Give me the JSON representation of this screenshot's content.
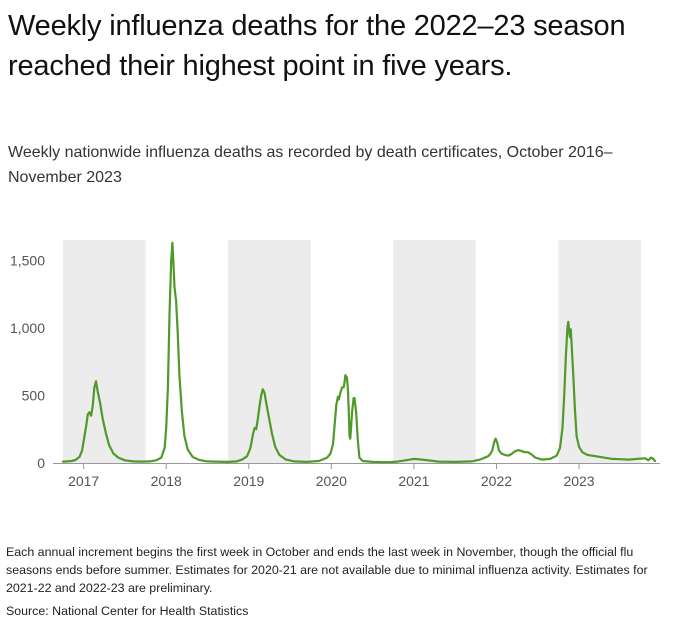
{
  "header": {
    "title": "Weekly influenza deaths for the 2022–23 season reached their highest point in five years.",
    "subtitle": "Weekly nationwide influenza deaths as recorded by death certificates, October 2016–November 2023"
  },
  "footer": {
    "notes": "Each annual increment begins the first week in October and ends the last week in November, though the official flu seasons ends before summer. Estimates for 2020-21 are not available due to minimal influenza activity. Estimates for 2021-22 and 2022-23 are preliminary.",
    "source": "Source: National Center for Health Statistics"
  },
  "colors": {
    "line": "#4f9a2a",
    "band": "#ececec",
    "baseline": "#999999",
    "tick_text": "#555555"
  },
  "chart_data": {
    "type": "line",
    "title": "",
    "xlabel": "",
    "ylabel": "",
    "x_range": [
      2016.75,
      2023.92
    ],
    "ylim": [
      0,
      1650
    ],
    "y_ticks": [
      {
        "value": 0,
        "label": "0"
      },
      {
        "value": 500,
        "label": "500"
      },
      {
        "value": 1000,
        "label": "1,000"
      },
      {
        "value": 1500,
        "label": "1,500"
      }
    ],
    "x_ticks": [
      {
        "value": 2017,
        "label": "2017"
      },
      {
        "value": 2018,
        "label": "2018"
      },
      {
        "value": 2019,
        "label": "2019"
      },
      {
        "value": 2020,
        "label": "2020"
      },
      {
        "value": 2021,
        "label": "2021"
      },
      {
        "value": 2022,
        "label": "2022"
      },
      {
        "value": 2023,
        "label": "2023"
      }
    ],
    "shaded_seasons": [
      [
        2016.75,
        2017.75
      ],
      [
        2018.75,
        2019.75
      ],
      [
        2020.75,
        2021.75
      ],
      [
        2022.75,
        2023.75
      ]
    ],
    "grid": false,
    "legend": "none",
    "series": [
      {
        "values": [
          [
            2016.75,
            10
          ],
          [
            2016.8,
            12
          ],
          [
            2016.85,
            15
          ],
          [
            2016.9,
            22
          ],
          [
            2016.95,
            45
          ],
          [
            2016.98,
            90
          ],
          [
            2017.0,
            160
          ],
          [
            2017.03,
            270
          ],
          [
            2017.05,
            360
          ],
          [
            2017.07,
            375
          ],
          [
            2017.09,
            350
          ],
          [
            2017.11,
            420
          ],
          [
            2017.13,
            560
          ],
          [
            2017.15,
            605
          ],
          [
            2017.17,
            530
          ],
          [
            2017.2,
            440
          ],
          [
            2017.23,
            330
          ],
          [
            2017.27,
            220
          ],
          [
            2017.31,
            130
          ],
          [
            2017.36,
            70
          ],
          [
            2017.42,
            40
          ],
          [
            2017.5,
            20
          ],
          [
            2017.6,
            12
          ],
          [
            2017.7,
            10
          ],
          [
            2017.8,
            12
          ],
          [
            2017.88,
            20
          ],
          [
            2017.94,
            40
          ],
          [
            2017.98,
            110
          ],
          [
            2018.0,
            260
          ],
          [
            2018.02,
            560
          ],
          [
            2018.04,
            1100
          ],
          [
            2018.06,
            1500
          ],
          [
            2018.075,
            1630
          ],
          [
            2018.09,
            1450
          ],
          [
            2018.1,
            1300
          ],
          [
            2018.12,
            1200
          ],
          [
            2018.14,
            950
          ],
          [
            2018.16,
            650
          ],
          [
            2018.19,
            380
          ],
          [
            2018.22,
            200
          ],
          [
            2018.26,
            100
          ],
          [
            2018.32,
            45
          ],
          [
            2018.4,
            22
          ],
          [
            2018.5,
            12
          ],
          [
            2018.6,
            10
          ],
          [
            2018.75,
            8
          ],
          [
            2018.85,
            12
          ],
          [
            2018.92,
            25
          ],
          [
            2018.98,
            50
          ],
          [
            2019.02,
            110
          ],
          [
            2019.05,
            210
          ],
          [
            2019.07,
            260
          ],
          [
            2019.09,
            250
          ],
          [
            2019.11,
            330
          ],
          [
            2019.13,
            420
          ],
          [
            2019.15,
            500
          ],
          [
            2019.17,
            545
          ],
          [
            2019.19,
            520
          ],
          [
            2019.21,
            450
          ],
          [
            2019.24,
            350
          ],
          [
            2019.28,
            220
          ],
          [
            2019.32,
            120
          ],
          [
            2019.37,
            60
          ],
          [
            2019.45,
            25
          ],
          [
            2019.55,
            12
          ],
          [
            2019.7,
            8
          ],
          [
            2019.85,
            15
          ],
          [
            2019.95,
            40
          ],
          [
            2019.99,
            70
          ],
          [
            2020.02,
            140
          ],
          [
            2020.04,
            280
          ],
          [
            2020.06,
            430
          ],
          [
            2020.08,
            490
          ],
          [
            2020.09,
            470
          ],
          [
            2020.11,
            520
          ],
          [
            2020.13,
            560
          ],
          [
            2020.15,
            560
          ],
          [
            2020.16,
            600
          ],
          [
            2020.17,
            650
          ],
          [
            2020.19,
            630
          ],
          [
            2020.2,
            545
          ],
          [
            2020.21,
            400
          ],
          [
            2020.22,
            200
          ],
          [
            2020.23,
            180
          ],
          [
            2020.25,
            370
          ],
          [
            2020.27,
            480
          ],
          [
            2020.28,
            480
          ],
          [
            2020.3,
            380
          ],
          [
            2020.32,
            170
          ],
          [
            2020.34,
            40
          ],
          [
            2020.38,
            15
          ],
          [
            2020.5,
            8
          ],
          [
            2020.7,
            6
          ],
          [
            2020.8,
            10
          ],
          [
            2020.9,
            20
          ],
          [
            2021.0,
            30
          ],
          [
            2021.1,
            25
          ],
          [
            2021.2,
            18
          ],
          [
            2021.3,
            10
          ],
          [
            2021.5,
            8
          ],
          [
            2021.7,
            12
          ],
          [
            2021.8,
            25
          ],
          [
            2021.9,
            50
          ],
          [
            2021.93,
            70
          ],
          [
            2021.95,
            95
          ],
          [
            2021.97,
            150
          ],
          [
            2021.99,
            180
          ],
          [
            2022.01,
            150
          ],
          [
            2022.03,
            95
          ],
          [
            2022.06,
            70
          ],
          [
            2022.1,
            60
          ],
          [
            2022.14,
            55
          ],
          [
            2022.18,
            65
          ],
          [
            2022.22,
            85
          ],
          [
            2022.26,
            95
          ],
          [
            2022.3,
            90
          ],
          [
            2022.34,
            80
          ],
          [
            2022.38,
            80
          ],
          [
            2022.42,
            65
          ],
          [
            2022.47,
            40
          ],
          [
            2022.55,
            25
          ],
          [
            2022.65,
            30
          ],
          [
            2022.73,
            55
          ],
          [
            2022.77,
            110
          ],
          [
            2022.8,
            260
          ],
          [
            2022.82,
            500
          ],
          [
            2022.84,
            780
          ],
          [
            2022.86,
            1010
          ],
          [
            2022.87,
            1045
          ],
          [
            2022.88,
            980
          ],
          [
            2022.89,
            930
          ],
          [
            2022.9,
            990
          ],
          [
            2022.91,
            880
          ],
          [
            2022.93,
            650
          ],
          [
            2022.95,
            400
          ],
          [
            2022.97,
            200
          ],
          [
            2023.0,
            120
          ],
          [
            2023.04,
            80
          ],
          [
            2023.1,
            60
          ],
          [
            2023.2,
            50
          ],
          [
            2023.3,
            40
          ],
          [
            2023.4,
            30
          ],
          [
            2023.5,
            28
          ],
          [
            2023.6,
            25
          ],
          [
            2023.7,
            30
          ],
          [
            2023.8,
            35
          ],
          [
            2023.84,
            20
          ],
          [
            2023.87,
            40
          ],
          [
            2023.9,
            30
          ],
          [
            2023.92,
            15
          ]
        ]
      }
    ]
  }
}
